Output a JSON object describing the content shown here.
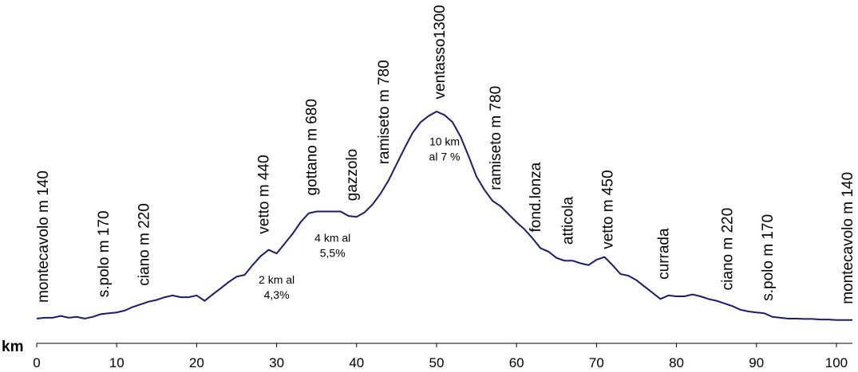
{
  "chart_data": {
    "type": "line",
    "xlabel": "km",
    "xlim": [
      0,
      102
    ],
    "ylim": [
      0,
      1400
    ],
    "grid": false,
    "line_color": "#1a1a6e",
    "x_ticks": [
      0,
      10,
      20,
      30,
      40,
      50,
      60,
      70,
      80,
      90,
      100
    ],
    "profile": {
      "x": [
        0,
        1,
        2,
        3,
        4,
        5,
        6,
        7,
        8,
        9,
        10,
        11,
        12,
        13,
        14,
        15,
        16,
        17,
        18,
        19,
        20,
        21,
        22,
        23,
        24,
        25,
        26,
        27,
        28,
        29,
        30,
        31,
        32,
        33,
        34,
        35,
        36,
        37,
        38,
        39,
        40,
        41,
        42,
        43,
        44,
        45,
        46,
        47,
        48,
        49,
        50,
        51,
        52,
        53,
        54,
        55,
        56,
        57,
        58,
        59,
        60,
        61,
        62,
        63,
        64,
        65,
        66,
        67,
        68,
        69,
        70,
        71,
        72,
        73,
        74,
        75,
        76,
        77,
        78,
        79,
        80,
        81,
        82,
        83,
        84,
        85,
        86,
        87,
        88,
        89,
        90,
        91,
        92,
        93,
        94,
        95,
        96,
        97,
        98,
        99,
        100,
        101,
        102
      ],
      "y": [
        140,
        145,
        145,
        155,
        145,
        150,
        140,
        150,
        165,
        170,
        175,
        185,
        205,
        220,
        235,
        245,
        260,
        270,
        260,
        260,
        270,
        240,
        275,
        310,
        345,
        375,
        385,
        440,
        490,
        525,
        505,
        560,
        615,
        680,
        730,
        740,
        740,
        740,
        740,
        715,
        710,
        735,
        780,
        840,
        915,
        1005,
        1095,
        1180,
        1240,
        1275,
        1300,
        1280,
        1240,
        1160,
        1050,
        935,
        860,
        800,
        770,
        725,
        680,
        640,
        590,
        535,
        515,
        480,
        465,
        465,
        450,
        440,
        470,
        485,
        440,
        390,
        380,
        355,
        320,
        285,
        250,
        270,
        265,
        265,
        275,
        265,
        250,
        240,
        225,
        210,
        190,
        180,
        175,
        170,
        150,
        145,
        140,
        140,
        138,
        138,
        135,
        135,
        132,
        132,
        132
      ]
    },
    "place_labels": [
      {
        "text": "montecavolo m 140",
        "km": 0
      },
      {
        "text": "s.polo m 170",
        "km": 9
      },
      {
        "text": "ciano m 220",
        "km": 14
      },
      {
        "text": "vetto m 440",
        "km": 29
      },
      {
        "text": "gottano m 680",
        "km": 35
      },
      {
        "text": "gazzolo",
        "km": 40
      },
      {
        "text": "ramiseto m 780",
        "km": 44
      },
      {
        "text": "ventasso1300",
        "km": 51
      },
      {
        "text": "ramiseto m 780",
        "km": 58
      },
      {
        "text": "fond.lonza",
        "km": 63
      },
      {
        "text": "atticola",
        "km": 67
      },
      {
        "text": "vetto m 450",
        "km": 72
      },
      {
        "text": "currada",
        "km": 79
      },
      {
        "text": "ciano m 220",
        "km": 87
      },
      {
        "text": "s.polo m 170",
        "km": 92
      },
      {
        "text": "montecavolo m 140",
        "km": 102
      }
    ],
    "annotations": [
      {
        "lines": [
          "2 km al",
          "4,3%"
        ],
        "km": 30
      },
      {
        "lines": [
          "4  km al",
          "5,5%"
        ],
        "km": 37
      },
      {
        "lines": [
          "10  km",
          "al 7 %"
        ],
        "km": 51
      }
    ]
  }
}
